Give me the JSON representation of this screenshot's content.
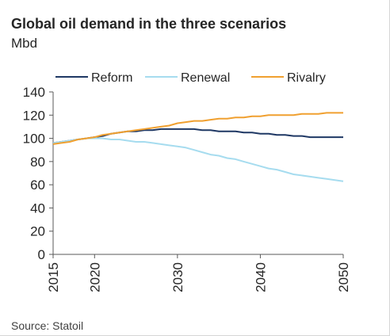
{
  "chart_data": {
    "type": "line",
    "title": "Global oil demand in the three scenarios",
    "subtitle": "Mbd",
    "source": "Source: Statoil",
    "xlim": [
      2015,
      2050
    ],
    "ylim": [
      0,
      140
    ],
    "yticks": [
      "0",
      "20",
      "40",
      "60",
      "80",
      "100",
      "120",
      "140"
    ],
    "xticks": [
      "2015",
      "2020",
      "2030",
      "2040",
      "2050"
    ],
    "legend_position": "top",
    "grid": false,
    "x": [
      2015,
      2016,
      2017,
      2018,
      2019,
      2020,
      2021,
      2022,
      2023,
      2024,
      2025,
      2026,
      2027,
      2028,
      2029,
      2030,
      2031,
      2032,
      2033,
      2034,
      2035,
      2036,
      2037,
      2038,
      2039,
      2040,
      2041,
      2042,
      2043,
      2044,
      2045,
      2046,
      2047,
      2048,
      2049,
      2050
    ],
    "series": [
      {
        "name": "Reform",
        "color": "#1f3864",
        "values": [
          96,
          97,
          98,
          99,
          100,
          101,
          102,
          104,
          105,
          106,
          106,
          107,
          107,
          108,
          108,
          108,
          108,
          108,
          107,
          107,
          106,
          106,
          106,
          105,
          105,
          104,
          104,
          103,
          103,
          102,
          102,
          101,
          101,
          101,
          101,
          101
        ]
      },
      {
        "name": "Renewal",
        "color": "#a6dcef",
        "values": [
          96,
          97,
          98,
          99,
          100,
          100,
          100,
          99,
          99,
          98,
          97,
          97,
          96,
          95,
          94,
          93,
          92,
          90,
          88,
          86,
          85,
          83,
          82,
          80,
          78,
          76,
          74,
          73,
          71,
          69,
          68,
          67,
          66,
          65,
          64,
          63
        ]
      },
      {
        "name": "Rivalry",
        "color": "#f0a030",
        "values": [
          95,
          96,
          97,
          99,
          100,
          101,
          103,
          104,
          105,
          106,
          107,
          108,
          109,
          110,
          111,
          113,
          114,
          115,
          115,
          116,
          117,
          117,
          118,
          118,
          119,
          119,
          120,
          120,
          120,
          120,
          121,
          121,
          121,
          122,
          122,
          122
        ]
      }
    ]
  }
}
